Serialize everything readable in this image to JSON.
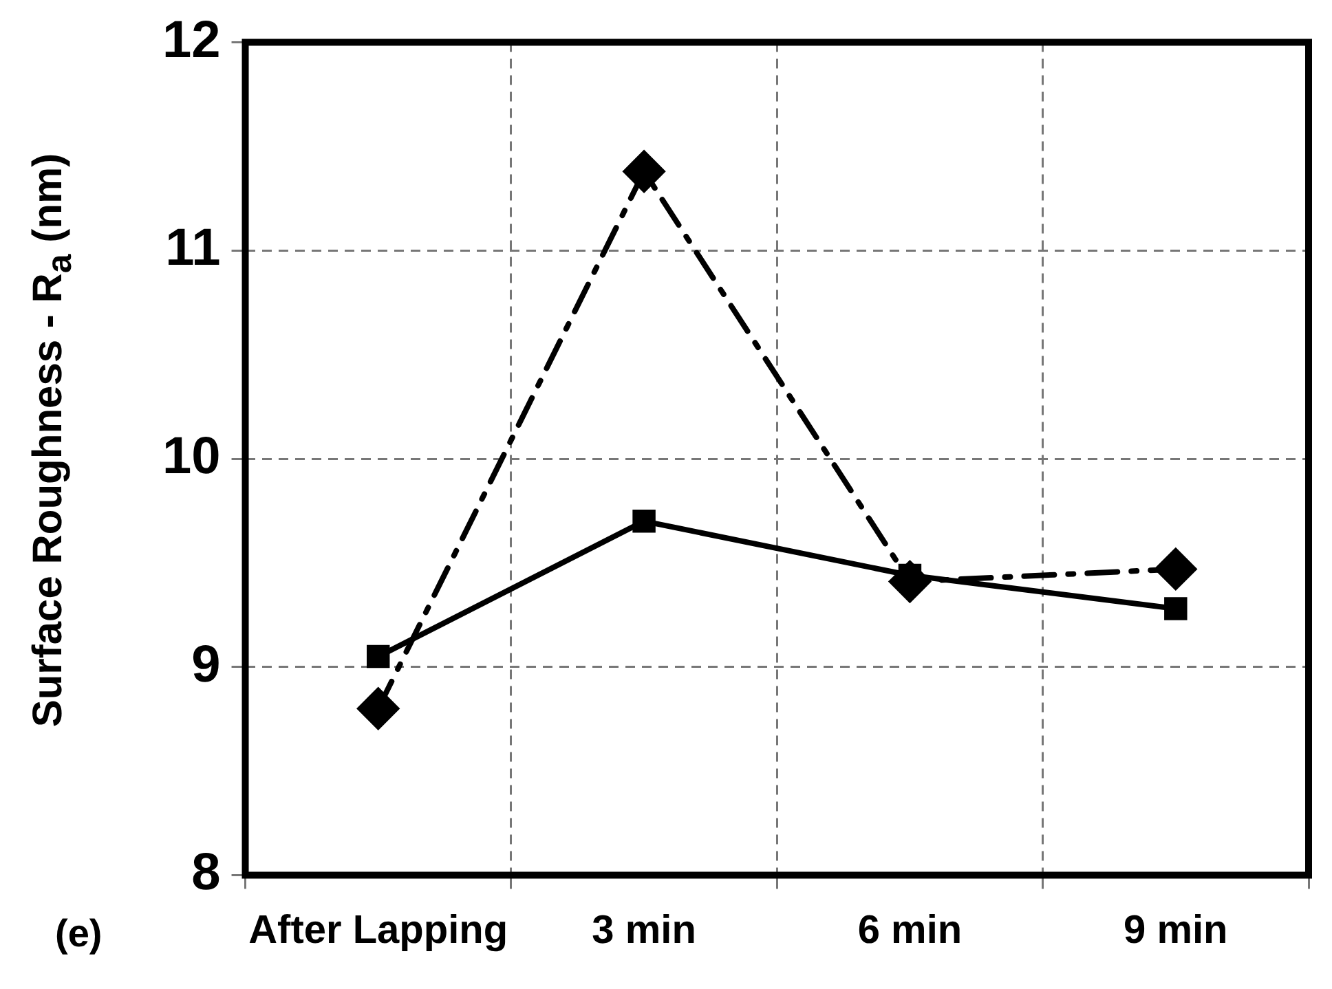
{
  "chart_data": {
    "type": "line",
    "ylabel": "Surface Roughness - R$_{a}$ (nm)",
    "categories": [
      "After Lapping",
      "3 min",
      "6 min",
      "9 min"
    ],
    "series": [
      {
        "color": "#000000",
        "values": [
          9.05,
          9.7,
          9.44,
          9.28
        ],
        "marker": "square",
        "line_style": "solid"
      },
      {
        "color": "#000000",
        "values": [
          8.8,
          11.38,
          9.41,
          9.47
        ],
        "marker": "diamond",
        "line_style": "dashed"
      }
    ],
    "ylim": [
      8,
      12
    ],
    "yticks": [
      8,
      9,
      10,
      11,
      12
    ],
    "grid": true,
    "annotations": [
      "(e)"
    ]
  }
}
